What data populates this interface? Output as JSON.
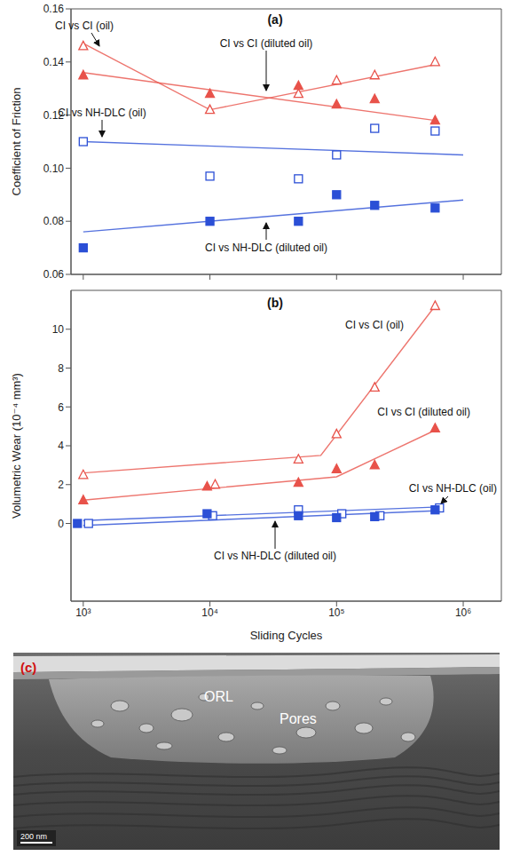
{
  "chart_data": [
    {
      "type": "scatter",
      "title": "(a)",
      "y_label": "Coefficient of Friction",
      "log": "x",
      "xlim": [
        800,
        2000000
      ],
      "xticks": [
        1000,
        10000,
        100000,
        1000000
      ],
      "ylim": [
        0.06,
        0.16
      ],
      "yticks": [
        0.06,
        0.08,
        {
          "value": 0.1,
          "label": "0.10"
        },
        0.12,
        0.14,
        0.16
      ],
      "tick_labels": "y",
      "grid": false,
      "series": [
        {
          "name": "CI vs CI (oil)",
          "color": "#e8524a",
          "marker": "triangle-open",
          "line_style": "solid",
          "x": [
            1000,
            10000,
            50000,
            100000,
            200000,
            600000
          ],
          "values": [
            0.146,
            0.122,
            0.128,
            0.133,
            0.135,
            0.14
          ],
          "fit_x": [
            1000,
            10000,
            600000
          ],
          "fit_values": [
            0.147,
            0.122,
            0.139
          ]
        },
        {
          "name": "CI vs CI (diluted oil)",
          "color": "#e8524a",
          "marker": "triangle",
          "line_style": "solid",
          "x": [
            1000,
            10000,
            50000,
            100000,
            200000,
            600000
          ],
          "values": [
            0.135,
            0.128,
            0.131,
            0.124,
            0.126,
            0.118
          ],
          "fit_x": [
            1000,
            600000
          ],
          "fit_values": [
            0.136,
            0.118
          ]
        },
        {
          "name": "CI vs NH-DLC (oil)",
          "color": "#2b4fd6",
          "marker": "square-open",
          "line_style": "solid",
          "x": [
            1000,
            10000,
            50000,
            100000,
            200000,
            600000
          ],
          "values": [
            0.11,
            0.097,
            0.096,
            0.105,
            0.115,
            0.114
          ],
          "fit_x": [
            1000,
            1000000
          ],
          "fit_values": [
            0.11,
            0.105
          ]
        },
        {
          "name": "CI vs NH-DLC (diluted oil)",
          "color": "#2b4fd6",
          "marker": "square",
          "line_style": "solid",
          "x": [
            1000,
            10000,
            50000,
            100000,
            200000,
            600000
          ],
          "values": [
            0.07,
            0.08,
            0.08,
            0.09,
            0.086,
            0.085
          ],
          "fit_x": [
            1000,
            1000000
          ],
          "fit_values": [
            0.076,
            0.088
          ]
        }
      ]
    },
    {
      "type": "scatter",
      "title": "(b)",
      "x_label": "Sliding Cycles",
      "y_label": "Volumetric Wear (10⁻⁴ mm³)",
      "log": "x",
      "xlim": [
        800,
        2000000
      ],
      "xticks": [
        {
          "value": 1000,
          "label": "10³"
        },
        {
          "value": 10000,
          "label": "10⁴"
        },
        {
          "value": 100000,
          "label": "10⁵"
        },
        {
          "value": 1000000,
          "label": "10⁶"
        }
      ],
      "ylim": [
        -4,
        12
      ],
      "yticks": [
        0,
        2,
        4,
        6,
        8,
        10
      ],
      "grid": false,
      "series": [
        {
          "name": "CI vs CI (oil)",
          "color": "#e8524a",
          "marker": "triangle-open",
          "line_style": "solid",
          "x": [
            1000,
            11000,
            50000,
            100000,
            200000,
            600000
          ],
          "values": [
            2.5,
            2.0,
            3.3,
            4.6,
            7.0,
            11.2
          ],
          "fit_x": [
            1000,
            75000,
            600000
          ],
          "fit_values": [
            2.6,
            3.5,
            11.2
          ]
        },
        {
          "name": "CI vs CI (diluted oil)",
          "color": "#e8524a",
          "marker": "triangle",
          "line_style": "solid",
          "x": [
            1000,
            9500,
            50000,
            100000,
            200000,
            600000
          ],
          "values": [
            1.2,
            1.9,
            2.1,
            2.8,
            3.0,
            4.9
          ],
          "fit_x": [
            1000,
            100000,
            600000
          ],
          "fit_values": [
            1.2,
            2.4,
            4.8
          ]
        },
        {
          "name": "CI vs NH-DLC (oil)",
          "color": "#2b4fd6",
          "marker": "square-open",
          "line_style": "solid",
          "x": [
            1100,
            10500,
            50000,
            110000,
            220000,
            650000
          ],
          "values": [
            0.0,
            0.4,
            0.7,
            0.5,
            0.4,
            0.8
          ],
          "fit_x": [
            1000,
            650000
          ],
          "fit_values": [
            0.15,
            0.85
          ]
        },
        {
          "name": "CI vs NH-DLC (diluted oil)",
          "color": "#2b4fd6",
          "marker": "square",
          "line_style": "solid",
          "x": [
            900,
            9500,
            50000,
            100000,
            200000,
            600000
          ],
          "values": [
            0.0,
            0.5,
            0.4,
            0.3,
            0.35,
            0.7
          ],
          "fit_x": [
            1000,
            600000
          ],
          "fit_values": [
            -0.1,
            0.65
          ]
        }
      ]
    }
  ],
  "image": {
    "label": "(c)",
    "annotations": [
      "ORL",
      "Pores"
    ],
    "scale_bar": "200 nm"
  }
}
